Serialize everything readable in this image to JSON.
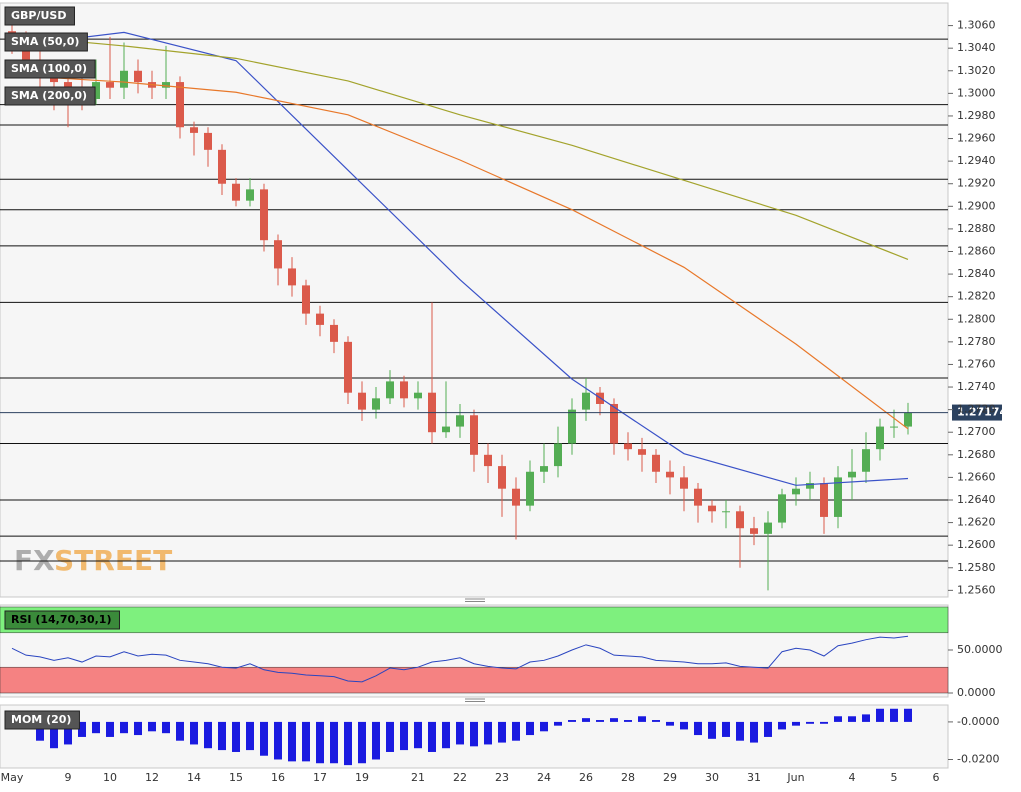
{
  "chart_data": [
    {
      "type": "candlestick",
      "name": "GBP/USD",
      "up_color": "#54ad54",
      "down_color": "#db5a4b",
      "watermark": [
        "FX",
        "STREET"
      ],
      "categories": [
        "May",
        null,
        null,
        null,
        "9",
        null,
        null,
        "10",
        null,
        null,
        "12",
        null,
        null,
        "14",
        null,
        null,
        "15",
        null,
        null,
        "16",
        null,
        null,
        "17",
        null,
        null,
        "19",
        null,
        null,
        null,
        "21",
        null,
        null,
        "22",
        null,
        null,
        "23",
        null,
        null,
        "24",
        null,
        null,
        "26",
        null,
        null,
        "28",
        null,
        null,
        "29",
        null,
        null,
        "30",
        null,
        null,
        "31",
        null,
        null,
        "Jun",
        null,
        null,
        null,
        "4",
        null,
        null,
        "5",
        null,
        null,
        "6"
      ],
      "open": [
        1.3055,
        1.3045,
        1.303,
        1.3015,
        1.301,
        1.3005,
        1.2995,
        1.301,
        1.3005,
        1.302,
        1.301,
        1.3005,
        1.301,
        1.297,
        1.2965,
        1.295,
        1.292,
        1.2905,
        1.2915,
        1.287,
        1.2845,
        1.283,
        1.2805,
        1.2795,
        1.278,
        1.2735,
        1.272,
        1.273,
        1.2745,
        1.273,
        1.2735,
        1.27,
        1.2705,
        1.2715,
        1.268,
        1.267,
        1.265,
        1.2635,
        1.2665,
        1.267,
        1.269,
        1.272,
        1.2735,
        1.2725,
        1.269,
        1.2685,
        1.268,
        1.2665,
        1.266,
        1.265,
        1.2635,
        1.263,
        1.263,
        1.2615,
        1.261,
        1.262,
        1.2645,
        1.265,
        1.2655,
        1.2625,
        1.266,
        1.2665,
        1.2685,
        1.2705,
        1.2705,
        null,
        null
      ],
      "high": [
        1.3072,
        1.3055,
        1.304,
        1.3025,
        1.302,
        1.3015,
        1.303,
        1.305,
        1.3045,
        1.303,
        1.302,
        1.3042,
        1.3015,
        1.2975,
        1.297,
        1.2955,
        1.2925,
        1.2925,
        1.292,
        1.2875,
        1.2855,
        1.2835,
        1.2812,
        1.28,
        1.2785,
        1.2745,
        1.274,
        1.2755,
        1.275,
        1.2745,
        1.2815,
        1.2745,
        1.2725,
        1.272,
        1.269,
        1.268,
        1.266,
        1.2675,
        1.269,
        1.2705,
        1.273,
        1.2748,
        1.274,
        1.273,
        1.27,
        1.2695,
        1.2685,
        1.2675,
        1.267,
        1.2655,
        1.264,
        1.264,
        1.2635,
        1.2625,
        1.263,
        1.265,
        1.266,
        1.2665,
        1.266,
        1.267,
        1.2685,
        1.27,
        1.2712,
        1.272,
        1.2726,
        null,
        null
      ],
      "low": [
        1.3035,
        1.302,
        1.3,
        1.2985,
        1.297,
        1.2985,
        1.299,
        1.2995,
        1.2995,
        1.3,
        1.2995,
        1.2995,
        1.296,
        1.2945,
        1.2935,
        1.291,
        1.29,
        1.29,
        1.286,
        1.283,
        1.282,
        1.2795,
        1.2785,
        1.277,
        1.2725,
        1.271,
        1.2712,
        1.2725,
        1.2722,
        1.272,
        1.269,
        1.2695,
        1.2695,
        1.2665,
        1.2655,
        1.2625,
        1.2605,
        1.263,
        1.2655,
        1.266,
        1.268,
        1.271,
        1.2715,
        1.268,
        1.2675,
        1.2665,
        1.2655,
        1.2645,
        1.263,
        1.262,
        1.262,
        1.2615,
        1.258,
        1.26,
        1.256,
        1.2615,
        1.2635,
        1.264,
        1.261,
        1.2615,
        1.264,
        1.2655,
        1.2675,
        1.2695,
        1.2698,
        null,
        null
      ],
      "close": [
        1.3045,
        1.303,
        1.3015,
        1.301,
        1.3005,
        1.2995,
        1.301,
        1.3005,
        1.302,
        1.301,
        1.3005,
        1.301,
        1.297,
        1.2965,
        1.295,
        1.292,
        1.2905,
        1.2915,
        1.287,
        1.2845,
        1.283,
        1.2805,
        1.2795,
        1.278,
        1.2735,
        1.272,
        1.273,
        1.2745,
        1.273,
        1.2735,
        1.27,
        1.2705,
        1.2715,
        1.268,
        1.267,
        1.265,
        1.2635,
        1.2665,
        1.267,
        1.269,
        1.272,
        1.2735,
        1.2725,
        1.269,
        1.2685,
        1.268,
        1.2665,
        1.266,
        1.265,
        1.2635,
        1.263,
        1.263,
        1.2615,
        1.261,
        1.262,
        1.2645,
        1.265,
        1.2655,
        1.2625,
        1.266,
        1.2665,
        1.2685,
        1.2705,
        1.2705,
        1.27174,
        null,
        null
      ],
      "series": [
        {
          "name": "SMA (50,0)",
          "color": "#3a52c8",
          "x": [
            0,
            8,
            16,
            24,
            32,
            40,
            48,
            56,
            64
          ],
          "values": [
            1.3042,
            1.3054,
            1.3029,
            1.2932,
            1.2835,
            1.2747,
            1.2681,
            1.2653,
            1.2659
          ]
        },
        {
          "name": "SMA (100,0)",
          "color": "#e8782a",
          "x": [
            0,
            8,
            16,
            24,
            32,
            40,
            48,
            56,
            64
          ],
          "values": [
            1.3016,
            1.301,
            1.3001,
            1.2981,
            1.2941,
            1.2897,
            1.2846,
            1.2778,
            1.2703
          ]
        },
        {
          "name": "SMA (200,0)",
          "color": "#a3a32c",
          "x": [
            0,
            8,
            16,
            24,
            32,
            40,
            48,
            56,
            64
          ],
          "values": [
            1.3051,
            1.3042,
            1.3031,
            1.3011,
            1.2981,
            1.2954,
            1.2923,
            1.2892,
            1.2853
          ]
        }
      ],
      "levels": [
        1.3048,
        1.299,
        1.2972,
        1.2924,
        1.2897,
        1.2865,
        1.2815,
        1.2748,
        1.269,
        1.264,
        1.2608,
        1.2586
      ],
      "last": 1.27174,
      "last_color": "#2c4260",
      "ylim": [
        1.2555,
        1.308
      ],
      "yticks": [
        {
          "value": 1.306,
          "label": "1.3060"
        },
        {
          "value": 1.304,
          "label": "1.3040"
        },
        {
          "value": 1.302,
          "label": "1.3020"
        },
        {
          "value": 1.3,
          "label": "1.3000"
        },
        {
          "value": 1.298,
          "label": "1.2980"
        },
        {
          "value": 1.296,
          "label": "1.2960"
        },
        {
          "value": 1.294,
          "label": "1.2940"
        },
        {
          "value": 1.292,
          "label": "1.2920"
        },
        {
          "value": 1.29,
          "label": "1.2900"
        },
        {
          "value": 1.288,
          "label": "1.2880"
        },
        {
          "value": 1.286,
          "label": "1.2860"
        },
        {
          "value": 1.284,
          "label": "1.2840"
        },
        {
          "value": 1.282,
          "label": "1.2820"
        },
        {
          "value": 1.28,
          "label": "1.2800"
        },
        {
          "value": 1.278,
          "label": "1.2780"
        },
        {
          "value": 1.276,
          "label": "1.2760"
        },
        {
          "value": 1.274,
          "label": "1.2740"
        },
        {
          "value": 1.272,
          "label": "1.2720"
        },
        {
          "value": 1.27,
          "label": "1.2700"
        },
        {
          "value": 1.268,
          "label": "1.2680"
        },
        {
          "value": 1.266,
          "label": "1.2660"
        },
        {
          "value": 1.264,
          "label": "1.2640"
        },
        {
          "value": 1.262,
          "label": "1.2620"
        },
        {
          "value": 1.26,
          "label": "1.2600"
        },
        {
          "value": 1.258,
          "label": "1.2580"
        },
        {
          "value": 1.256,
          "label": "1.2560"
        }
      ]
    },
    {
      "type": "line",
      "name": "RSI (14,70,30,1)",
      "color": "#2a45c0",
      "values": [
        52,
        44,
        42,
        38,
        41,
        36,
        43,
        42,
        48,
        43,
        45,
        44,
        38,
        36,
        34,
        30,
        29,
        34,
        27,
        24,
        23,
        21,
        20,
        19,
        14,
        13,
        20,
        29,
        27,
        30,
        36,
        38,
        41,
        34,
        31,
        29,
        28,
        36,
        38,
        43,
        50,
        56,
        52,
        44,
        43,
        42,
        38,
        37,
        36,
        34,
        34,
        35,
        31,
        30,
        29,
        48,
        52,
        50,
        43,
        55,
        58,
        62,
        65,
        64,
        66
      ],
      "bands": [
        {
          "from": 70,
          "to": 100,
          "color": "#7ef07e"
        },
        {
          "from": 0,
          "to": 30,
          "color": "#f58282"
        }
      ],
      "ylim": [
        0,
        100
      ],
      "yticks": [
        {
          "value": 50,
          "label": "50.0000"
        },
        {
          "value": 0,
          "label": "0.0000"
        }
      ]
    },
    {
      "type": "bar",
      "name": "MOM (20)",
      "color": "#1a1ae0",
      "values": [
        -0.002,
        -0.004,
        -0.01,
        -0.014,
        -0.012,
        -0.008,
        -0.006,
        -0.008,
        -0.006,
        -0.007,
        -0.005,
        -0.006,
        -0.01,
        -0.012,
        -0.014,
        -0.015,
        -0.016,
        -0.015,
        -0.018,
        -0.02,
        -0.021,
        -0.021,
        -0.022,
        -0.022,
        -0.023,
        -0.022,
        -0.02,
        -0.016,
        -0.015,
        -0.014,
        -0.016,
        -0.014,
        -0.012,
        -0.013,
        -0.012,
        -0.011,
        -0.01,
        -0.007,
        -0.005,
        -0.002,
        0.001,
        0.002,
        0.001,
        0.002,
        0.001,
        0.003,
        0.001,
        -0.002,
        -0.004,
        -0.007,
        -0.009,
        -0.008,
        -0.01,
        -0.011,
        -0.008,
        -0.004,
        -0.002,
        -0.001,
        -0.001,
        0.003,
        0.003,
        0.004,
        0.007,
        0.007,
        0.007
      ],
      "ylim": [
        -0.024,
        0.009
      ],
      "yticks": [
        {
          "value": 0,
          "label": "-0.0000"
        },
        {
          "value": -0.02,
          "label": "-0.0200"
        }
      ]
    }
  ]
}
